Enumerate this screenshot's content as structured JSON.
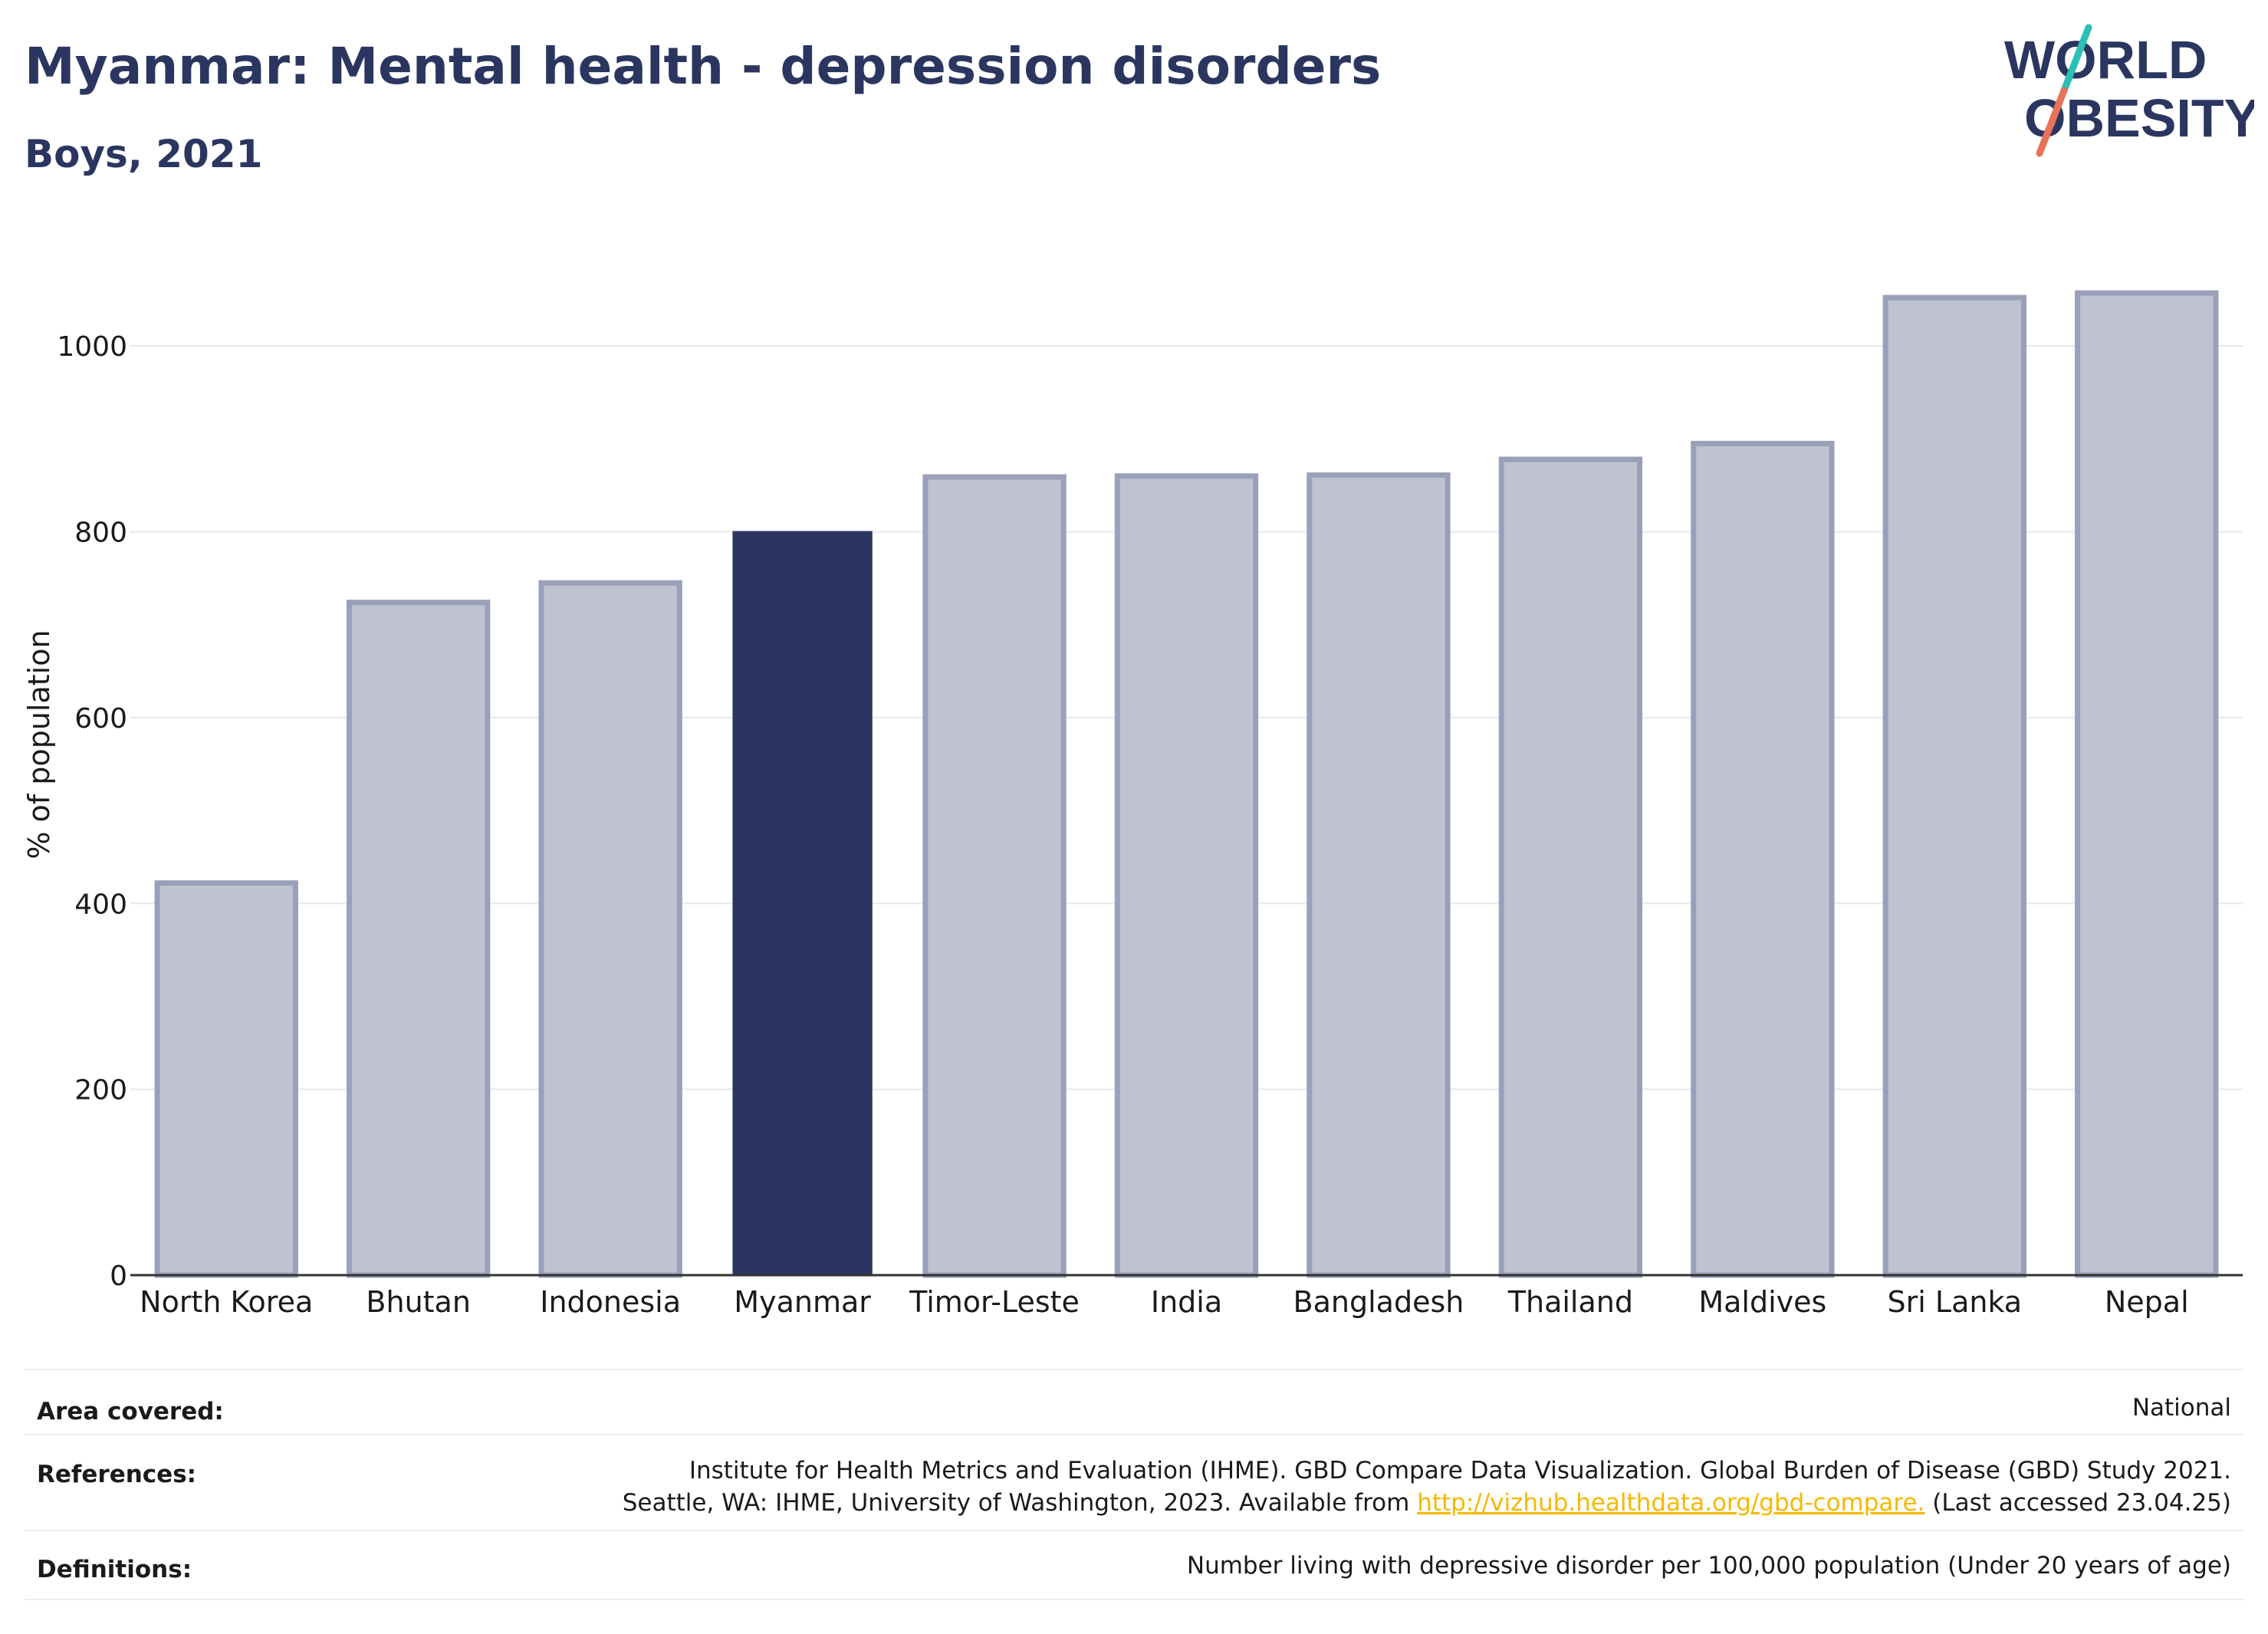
{
  "header": {
    "title": "Myanmar: Mental health - depression disorders",
    "subtitle": "Boys, 2021"
  },
  "logo": {
    "line1": "WORLD",
    "line2": "OBESITY",
    "colors": {
      "text": "#2b3660",
      "slash_top": "#2bbfb3",
      "slash_bottom": "#e8735a"
    }
  },
  "chart_data": {
    "type": "bar",
    "categories": [
      "North Korea",
      "Bhutan",
      "Indonesia",
      "Myanmar",
      "Timor-Leste",
      "India",
      "Bangladesh",
      "Thailand",
      "Maldives",
      "Sri Lanka",
      "Nepal"
    ],
    "values": [
      422,
      724,
      745,
      800,
      859,
      860,
      861,
      878,
      895,
      1052,
      1057
    ],
    "highlight": "Myanmar",
    "ylabel": "% of population",
    "xlabel": "",
    "ylim": [
      0,
      1100
    ],
    "yticks": [
      0,
      200,
      400,
      600,
      800,
      1000
    ],
    "grid": true,
    "legend": "none",
    "colors": {
      "highlight": "#2b3660",
      "other": "#bfc3d0",
      "other_edge": "#9aa0b8",
      "grid": "#e6e8ee",
      "axis": "#333333"
    }
  },
  "info": {
    "area_label": "Area covered:",
    "area_value": "National",
    "references_label": "References:",
    "references_line1": "Institute for Health Metrics and Evaluation (IHME). GBD Compare Data Visualization. Global Burden of Disease (GBD) Study 2021.",
    "references_line2_prefix": "Seattle, WA: IHME, University of Washington, 2023. Available from ",
    "references_link": "http://vizhub.healthdata.org/gbd-compare.",
    "references_line2_suffix": " (Last accessed 23.04.25)",
    "definitions_label": "Definitions:",
    "definitions_value": "Number living with depressive disorder per 100,000 population (Under 20 years of age)"
  }
}
